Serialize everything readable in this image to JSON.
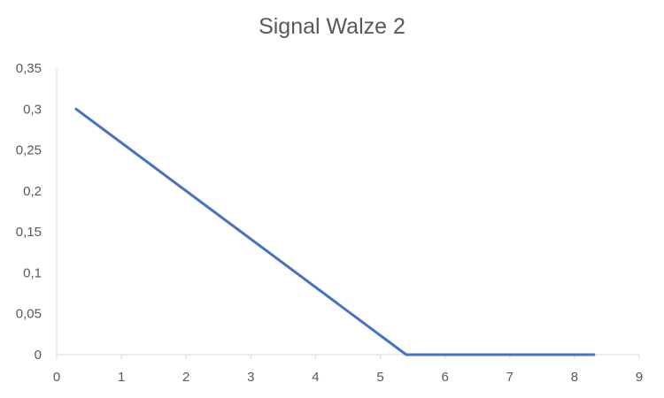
{
  "chart_data": {
    "type": "line",
    "title": "Signal Walze 2",
    "xlabel": "",
    "ylabel": "",
    "xlim": [
      0,
      9
    ],
    "ylim": [
      0,
      0.35
    ],
    "x_ticks": [
      "0",
      "1",
      "2",
      "3",
      "4",
      "5",
      "6",
      "7",
      "8",
      "9"
    ],
    "y_ticks": [
      "0",
      "0,05",
      "0,1",
      "0,15",
      "0,2",
      "0,25",
      "0,3",
      "0,35"
    ],
    "grid": false,
    "legend": "none",
    "series": [
      {
        "color": "#4472C4",
        "points": [
          {
            "x": 0.3,
            "y": 0.3
          },
          {
            "x": 5.4,
            "y": 0
          },
          {
            "x": 8.3,
            "y": 0
          }
        ]
      }
    ]
  }
}
